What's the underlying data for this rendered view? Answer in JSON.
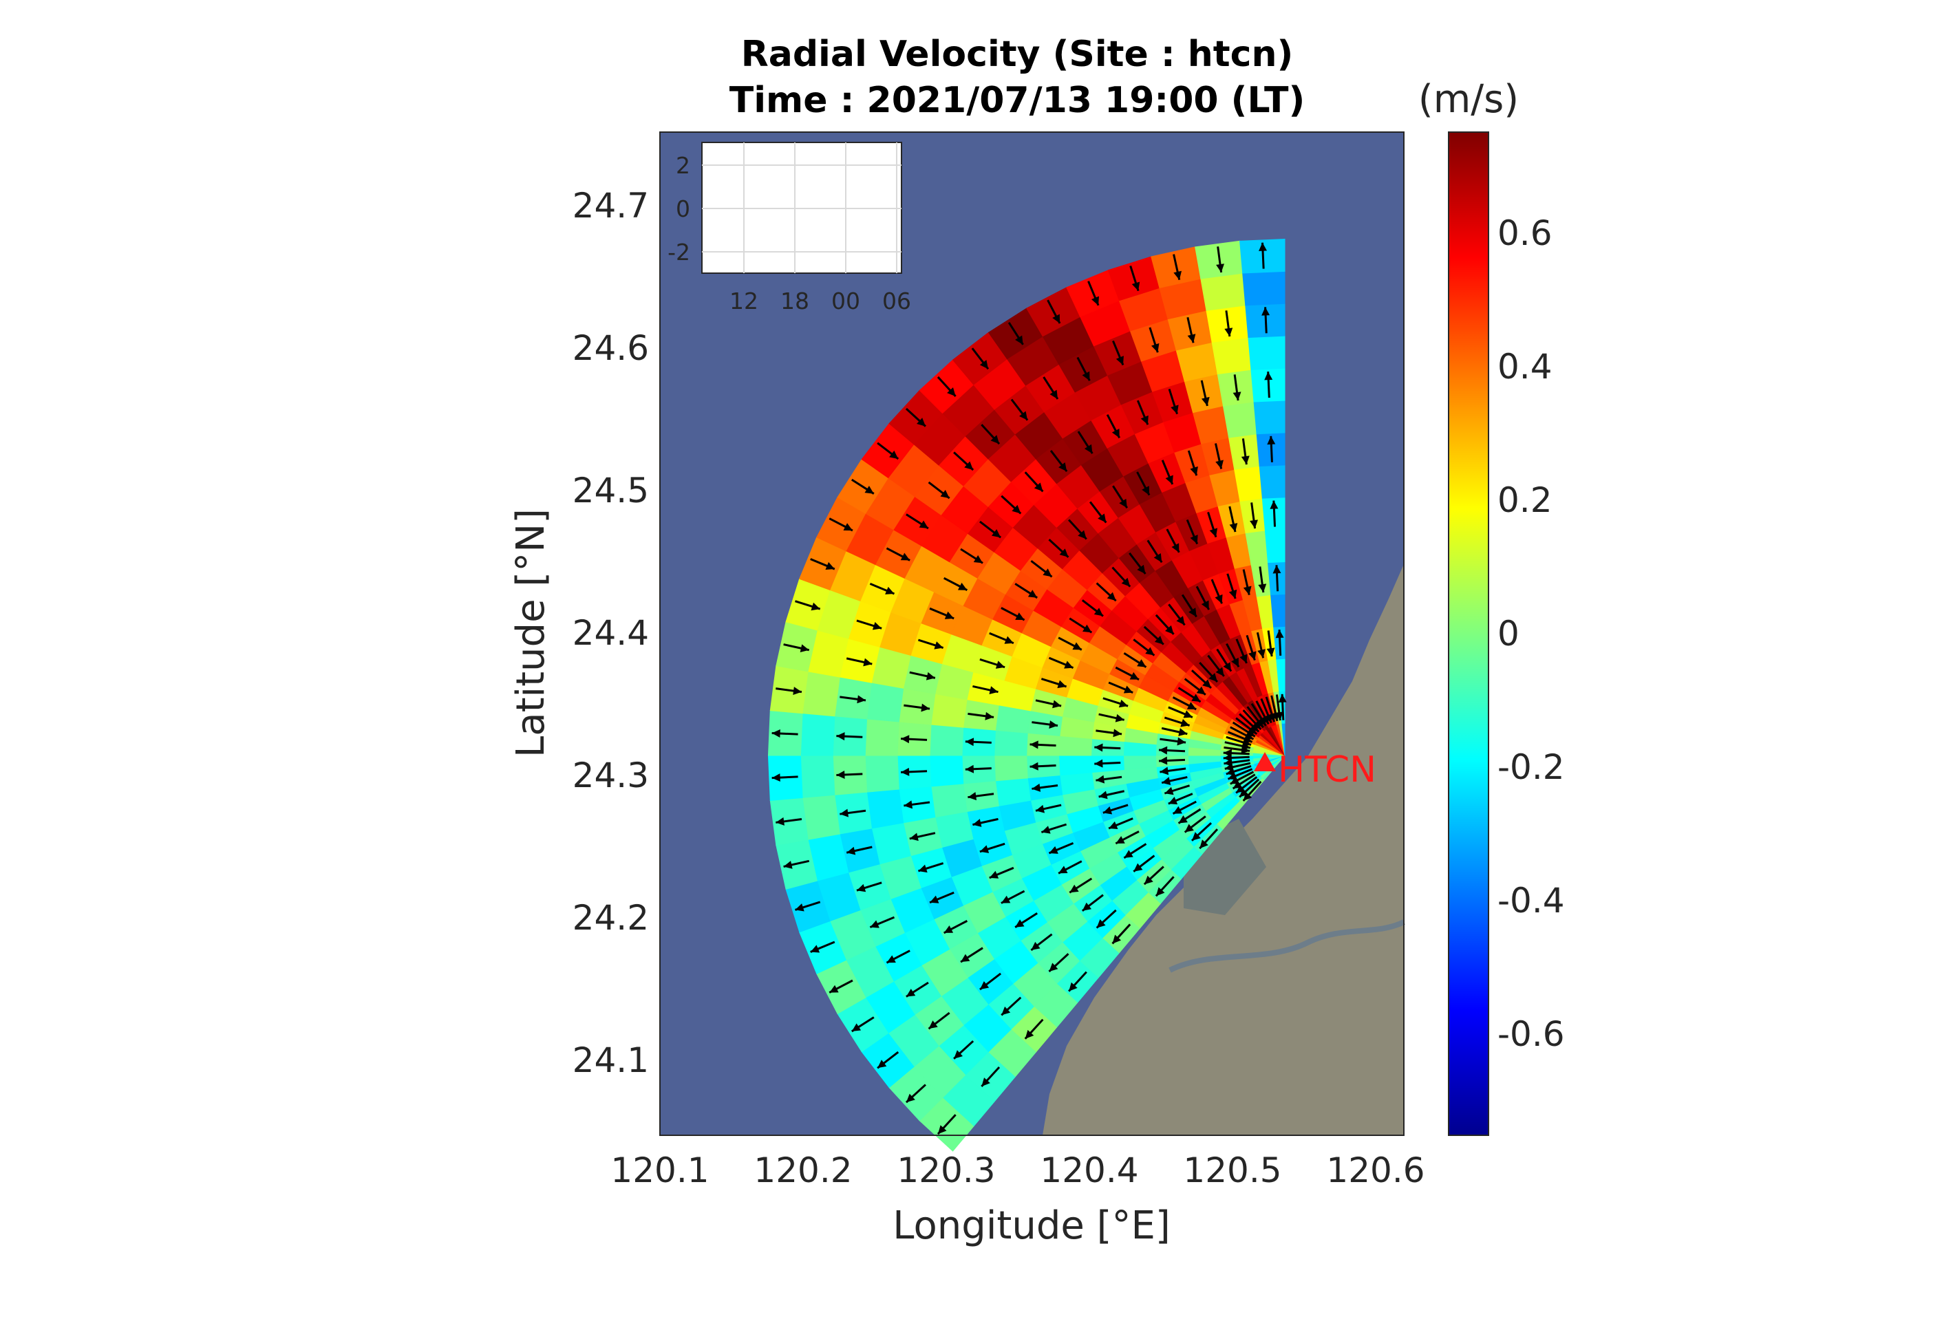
{
  "chart_data": {
    "type": "heatmap",
    "subtype": "hf-radar-radial-velocity-map",
    "title_lines": [
      "Radial Velocity (Site : htcn)",
      "Time : 2021/07/13 19:00 (LT)"
    ],
    "xlabel": "Longitude [°E]",
    "ylabel": "Latitude [°N]",
    "xlim": [
      120.1,
      120.6
    ],
    "ylim": [
      24.05,
      24.75
    ],
    "xticks": [
      "120.1",
      "120.2",
      "120.3",
      "120.4",
      "120.5",
      "120.6"
    ],
    "yticks": [
      "24.1",
      "24.2",
      "24.3",
      "24.4",
      "24.5",
      "24.6",
      "24.7"
    ],
    "colorbar": {
      "unit_label": "(m/s)",
      "range": [
        -0.75,
        0.75
      ],
      "ticks": [
        "0.6",
        "0.4",
        "0.2",
        "0",
        "-0.2",
        "-0.4",
        "-0.6"
      ],
      "colormap": "jet"
    },
    "site": {
      "label": "HTCN",
      "lon": 120.52,
      "lat": 24.315,
      "color": "#ff1a1a"
    },
    "coverage": {
      "bearing_min_deg": 220,
      "bearing_max_deg": 360,
      "max_range_km": 40
    },
    "velocity_by_bearing": [
      {
        "bearing": 222,
        "radial_velocity": -0.05
      },
      {
        "bearing": 230,
        "radial_velocity": -0.15
      },
      {
        "bearing": 240,
        "radial_velocity": -0.1
      },
      {
        "bearing": 250,
        "radial_velocity": -0.18
      },
      {
        "bearing": 260,
        "radial_velocity": -0.15
      },
      {
        "bearing": 270,
        "radial_velocity": -0.1
      },
      {
        "bearing": 280,
        "radial_velocity": 0.05
      },
      {
        "bearing": 290,
        "radial_velocity": 0.25
      },
      {
        "bearing": 300,
        "radial_velocity": 0.45
      },
      {
        "bearing": 310,
        "radial_velocity": 0.55
      },
      {
        "bearing": 320,
        "radial_velocity": 0.65
      },
      {
        "bearing": 330,
        "radial_velocity": 0.7
      },
      {
        "bearing": 340,
        "radial_velocity": 0.6
      },
      {
        "bearing": 350,
        "radial_velocity": 0.3
      },
      {
        "bearing": 358,
        "radial_velocity": -0.3
      }
    ],
    "inset": {
      "yticks": [
        "2",
        "0",
        "-2"
      ],
      "xticks": [
        "12",
        "18",
        "00",
        "06"
      ]
    },
    "colors": {
      "sea": "#4f6196",
      "land": "#8d8a78",
      "arrow": "#000000"
    }
  }
}
